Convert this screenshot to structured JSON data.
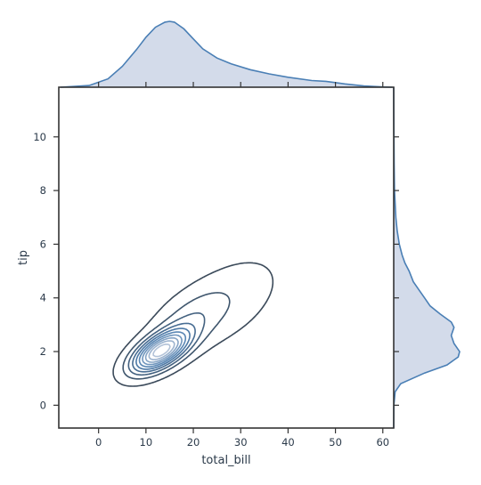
{
  "chart_data": {
    "type": "kde_joint",
    "title": "",
    "xlabel": "total_bill",
    "ylabel": "tip",
    "xlim": [
      -8.4,
      62.3
    ],
    "ylim": [
      -0.85,
      11.85
    ],
    "x_ticks": [
      0,
      10,
      20,
      30,
      40,
      50,
      60
    ],
    "y_ticks": [
      0,
      2,
      4,
      6,
      8,
      10
    ],
    "grid": false,
    "colors": {
      "contour_dark": "#3b4a5a",
      "contour_mid": "#4f7fb0",
      "contour_light": "#b3c3d8",
      "marginal_line": "#4a7fb5",
      "marginal_fill": "#d3dbea",
      "frame": "#333333",
      "text": "#2b3a4a"
    },
    "kde_components": [
      {
        "weight": 0.52,
        "mean": [
          13.0,
          2.0
        ],
        "sd": [
          4.0,
          0.52
        ],
        "rho": 0.6
      },
      {
        "weight": 0.26,
        "mean": [
          19.0,
          3.1
        ],
        "sd": [
          5.5,
          0.85
        ],
        "rho": 0.55
      },
      {
        "weight": 0.16,
        "mean": [
          28.0,
          3.9
        ],
        "sd": [
          6.0,
          1.05
        ],
        "rho": 0.4
      },
      {
        "weight": 0.06,
        "mean": [
          40.0,
          5.0
        ],
        "sd": [
          7.0,
          1.4
        ],
        "rho": 0.2
      }
    ],
    "contour_levels": 10,
    "marginal_x": {
      "x": [
        -8,
        -2,
        2,
        5,
        8,
        10,
        12,
        14,
        15,
        16,
        18,
        20,
        22,
        25,
        28,
        32,
        36,
        40,
        45,
        48,
        52,
        56,
        60,
        62
      ],
      "density": [
        0,
        0.002,
        0.01,
        0.025,
        0.045,
        0.06,
        0.072,
        0.078,
        0.079,
        0.078,
        0.07,
        0.058,
        0.046,
        0.035,
        0.028,
        0.021,
        0.016,
        0.012,
        0.008,
        0.007,
        0.004,
        0.0015,
        0.0003,
        0
      ]
    },
    "marginal_y": {
      "y": [
        -0.85,
        0,
        0.5,
        0.8,
        1.2,
        1.5,
        1.8,
        2.0,
        2.3,
        2.6,
        2.9,
        3.1,
        3.4,
        3.7,
        4.0,
        4.3,
        4.6,
        5.0,
        5.3,
        5.6,
        6.0,
        6.5,
        7.0,
        8.0,
        9.0,
        10.0,
        11.0,
        11.85
      ],
      "density": [
        0,
        0.001,
        0.01,
        0.05,
        0.22,
        0.38,
        0.46,
        0.47,
        0.43,
        0.41,
        0.43,
        0.41,
        0.33,
        0.26,
        0.22,
        0.18,
        0.14,
        0.11,
        0.08,
        0.06,
        0.04,
        0.025,
        0.015,
        0.006,
        0.003,
        0.002,
        0.0005,
        0
      ]
    }
  }
}
